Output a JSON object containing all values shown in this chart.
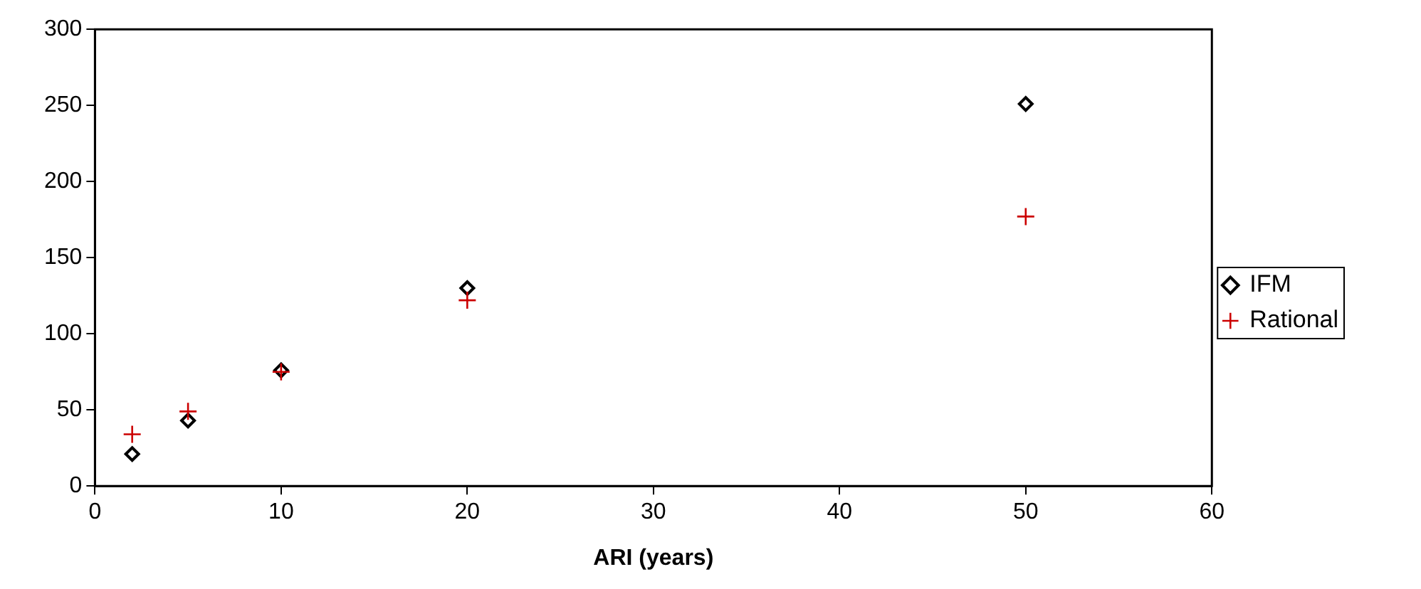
{
  "chart_data": {
    "type": "scatter",
    "xlabel": "ARI (years)",
    "x": [
      2,
      5,
      10,
      20,
      50
    ],
    "series": [
      {
        "name": "IFM",
        "color": "#000000",
        "marker": "diamond",
        "values": [
          21,
          43,
          76,
          130,
          251
        ]
      },
      {
        "name": "Rational",
        "color": "#cc0000",
        "marker": "cross",
        "values": [
          34,
          49,
          75,
          122,
          177
        ]
      }
    ],
    "xlim": [
      0,
      60
    ],
    "xticks": [
      0,
      10,
      20,
      30,
      40,
      50,
      60
    ],
    "ylim": [
      0,
      300
    ],
    "yticks": [
      0,
      50,
      100,
      150,
      200,
      250,
      300
    ],
    "grid": false,
    "legend": "right"
  }
}
